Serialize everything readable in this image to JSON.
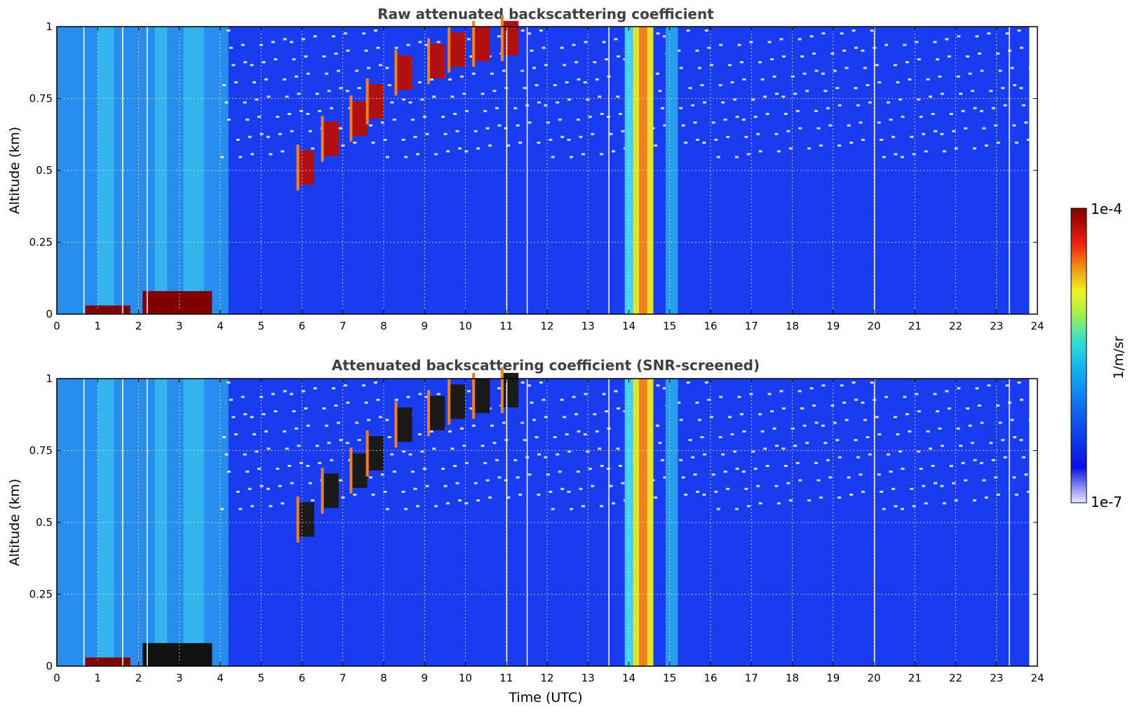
{
  "chart_data": [
    {
      "type": "heatmap",
      "title": "Raw attenuated backscattering coefficient",
      "xlabel": "",
      "ylabel": "Altitude (km)",
      "xlim": [
        0,
        24
      ],
      "ylim": [
        0,
        1
      ],
      "x_ticks": [
        "0",
        "1",
        "2",
        "3",
        "4",
        "5",
        "6",
        "7",
        "8",
        "9",
        "10",
        "11",
        "12",
        "13",
        "14",
        "15",
        "16",
        "17",
        "18",
        "19",
        "20",
        "21",
        "22",
        "23",
        "24"
      ],
      "y_ticks": [
        "0",
        "0.25",
        "0.5",
        "0.75",
        "1"
      ],
      "grid": true,
      "features": [
        {
          "kind": "aerosol-layer",
          "t_start": 0.7,
          "t_end": 1.8,
          "alt_top": 0.03
        },
        {
          "kind": "aerosol-layer",
          "t_start": 2.1,
          "t_end": 3.8,
          "alt_top": 0.08
        },
        {
          "kind": "elevated-layer",
          "t_start": 5.8,
          "t_end": 11.5,
          "alt_low": 0.4,
          "alt_high": 1.0
        },
        {
          "kind": "fog-precip-column",
          "t_start": 14.0,
          "t_end": 14.6,
          "alt_low": 0,
          "alt_high": 1.0
        }
      ]
    },
    {
      "type": "heatmap",
      "title": "Attenuated backscattering coefficient (SNR-screened)",
      "xlabel": "Time (UTC)",
      "ylabel": "Altitude (km)",
      "xlim": [
        0,
        24
      ],
      "ylim": [
        0,
        1
      ],
      "x_ticks": [
        "0",
        "1",
        "2",
        "3",
        "4",
        "5",
        "6",
        "7",
        "8",
        "9",
        "10",
        "11",
        "12",
        "13",
        "14",
        "15",
        "16",
        "17",
        "18",
        "19",
        "20",
        "21",
        "22",
        "23",
        "24"
      ],
      "y_ticks": [
        "0",
        "0.25",
        "0.5",
        "0.75",
        "1"
      ],
      "grid": true
    }
  ],
  "colorbar": {
    "label": "1/m/sr",
    "max_label": "1e-4",
    "min_label": "1e-7",
    "scale": "log",
    "colormap": "jet"
  },
  "colors": {
    "background_blue": "#1a3cf0",
    "light_blue": "#2a9cf0",
    "cyan": "#3fd4ee",
    "yellow": "#e8e030",
    "orange": "#f08020",
    "red": "#b01010",
    "dark_red": "#800000"
  }
}
